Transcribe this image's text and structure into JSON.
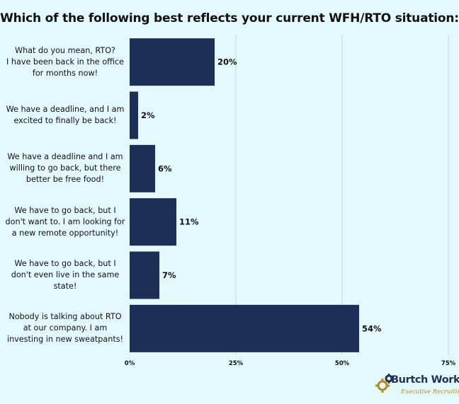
{
  "chart_data": {
    "type": "bar",
    "orientation": "horizontal",
    "title": "Which of the following best reflects your current WFH/RTO situation:",
    "categories": [
      "What do you mean, RTO? I have been back in the office for months now!",
      "We have a deadline, and I am excited to finally be back!",
      "We have a deadline and I am willing to go back, but there better be free food!",
      "We have to go back, but I don't want to. I am looking for a new remote opportunity!",
      "We have to go back, but I don't even live in the same state!",
      "Nobody is talking about RTO at our company. I am investing in new sweatpants!"
    ],
    "category_lines": [
      [
        "What do you mean, RTO?",
        "I have been back in the office",
        "for months now!"
      ],
      [
        "We have a deadline, and I am",
        "excited to finally be back!"
      ],
      [
        "We have a deadline and I am",
        "willing to go back, but there",
        "better be free food!"
      ],
      [
        "We have to go back, but I",
        "don't want to. I am looking for",
        "a new remote opportunity!"
      ],
      [
        "We have to go back, but I",
        "don't even live in the same",
        "state!"
      ],
      [
        "Nobody is talking about RTO",
        "at our company. I am",
        "investing in new sweatpants!"
      ]
    ],
    "values": [
      20,
      2,
      6,
      11,
      7,
      54
    ],
    "value_labels": [
      "20%",
      "2%",
      "6%",
      "11%",
      "7%",
      "54%"
    ],
    "xlim": [
      0,
      75
    ],
    "xticks": [
      0,
      25,
      50,
      75
    ],
    "xtick_labels": [
      "0%",
      "25%",
      "50%",
      "75%"
    ],
    "grid": true,
    "bar_color": "#1b2f57",
    "grid_color": "#c9d6dc"
  },
  "logo": {
    "wordmark": "Burtch Works",
    "tagline": "Executive Recruiting",
    "primary_color": "#1e3358",
    "accent_color": "#b08d1a"
  }
}
